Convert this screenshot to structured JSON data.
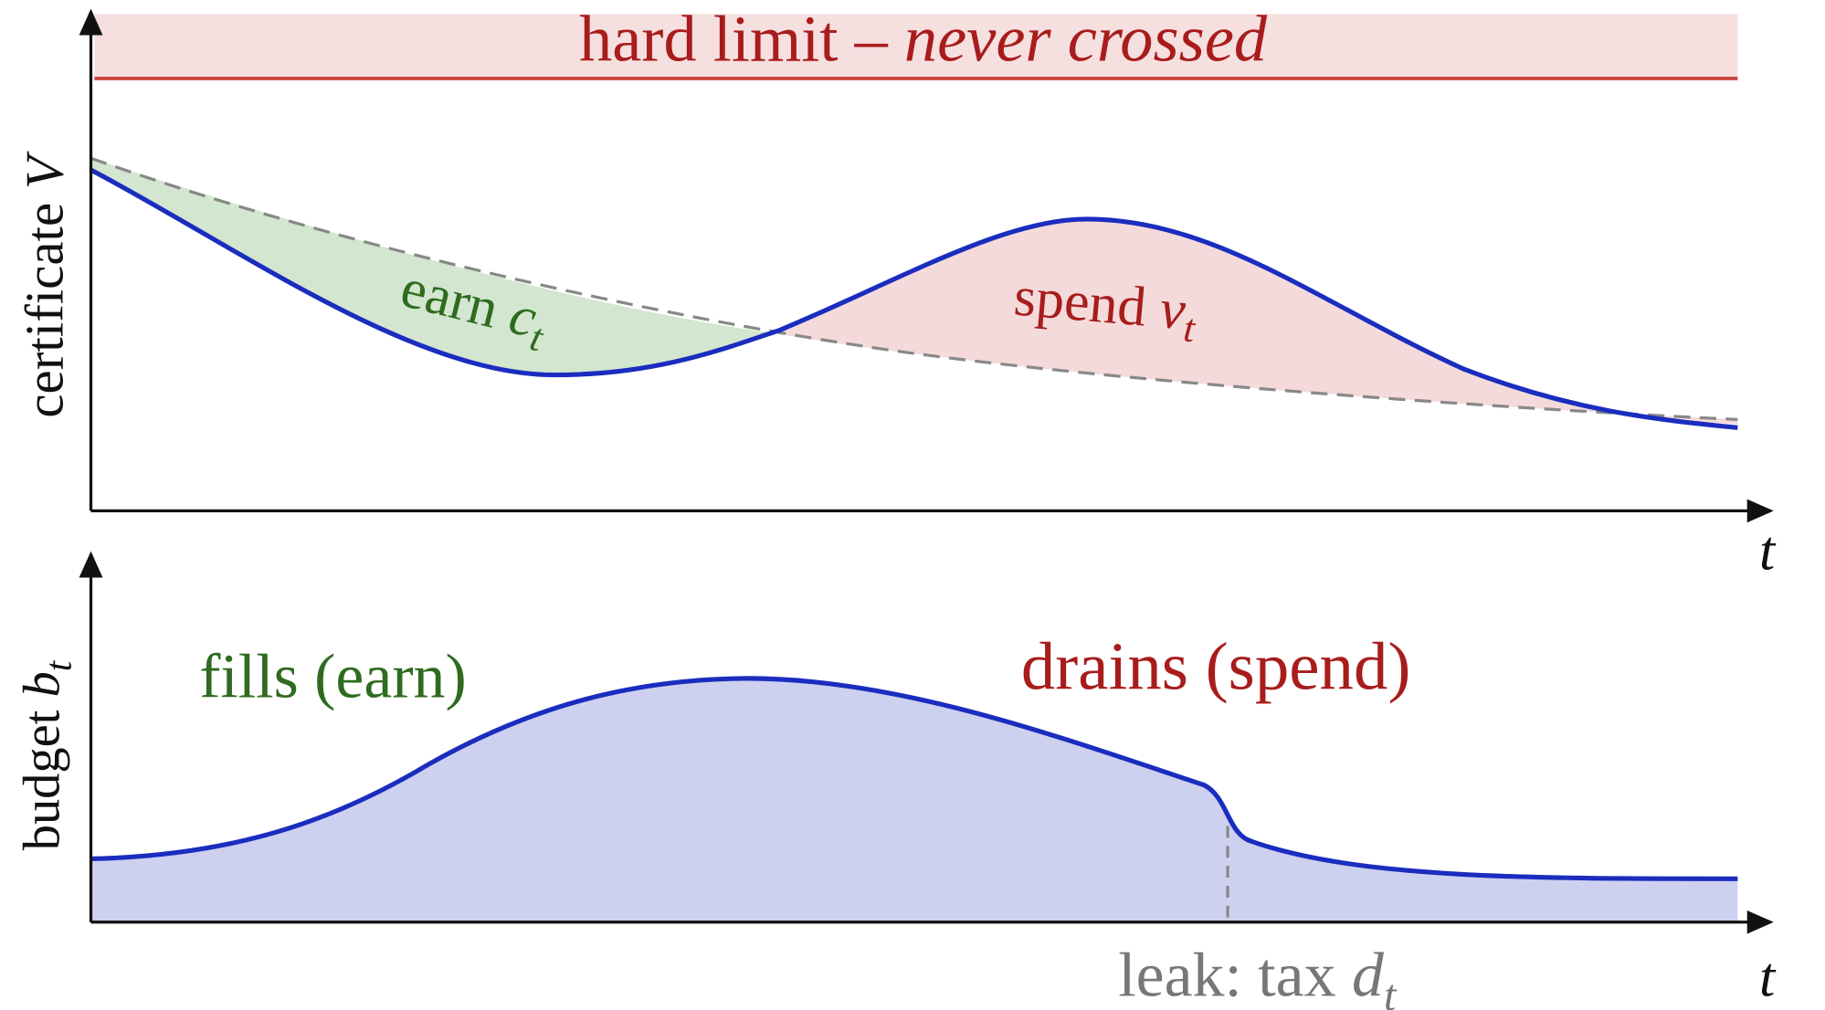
{
  "top": {
    "hard_limit": {
      "text": "hard limit –",
      "emphasis": "never crossed"
    },
    "y_label": {
      "text": "certificate",
      "symbol": "V"
    },
    "earn_label": {
      "text": "earn",
      "symbol": "c",
      "subscript": "t"
    },
    "spend_label": {
      "text": "spend",
      "symbol": "ν",
      "subscript": "t"
    },
    "x_label": "t"
  },
  "bottom": {
    "y_label": {
      "text": "budget",
      "symbol": "b",
      "subscript": "t"
    },
    "fills_label": "fills (earn)",
    "drains_label": "drains (spend)",
    "leak_label": {
      "text": "leak: tax",
      "symbol": "d",
      "subscript": "t"
    },
    "x_label": "t"
  }
}
